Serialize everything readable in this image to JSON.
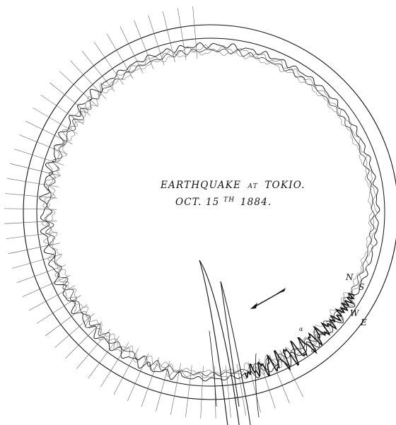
{
  "title": {
    "line1_main": "EARTHQUAKE",
    "line1_small": "AT",
    "line1_end": "TOKIO.",
    "line2_main": "OCT. 15",
    "line2_sup": "TH",
    "line2_end": "1884."
  },
  "direction_labels": {
    "n": "N",
    "s": "S",
    "w": "W",
    "e": "E"
  },
  "trace_labels": {
    "a": "α",
    "a_prime": "α′"
  },
  "colors": {
    "ink": "#111111",
    "light_trace": "#8a8a8a",
    "background": "#ffffff"
  }
}
